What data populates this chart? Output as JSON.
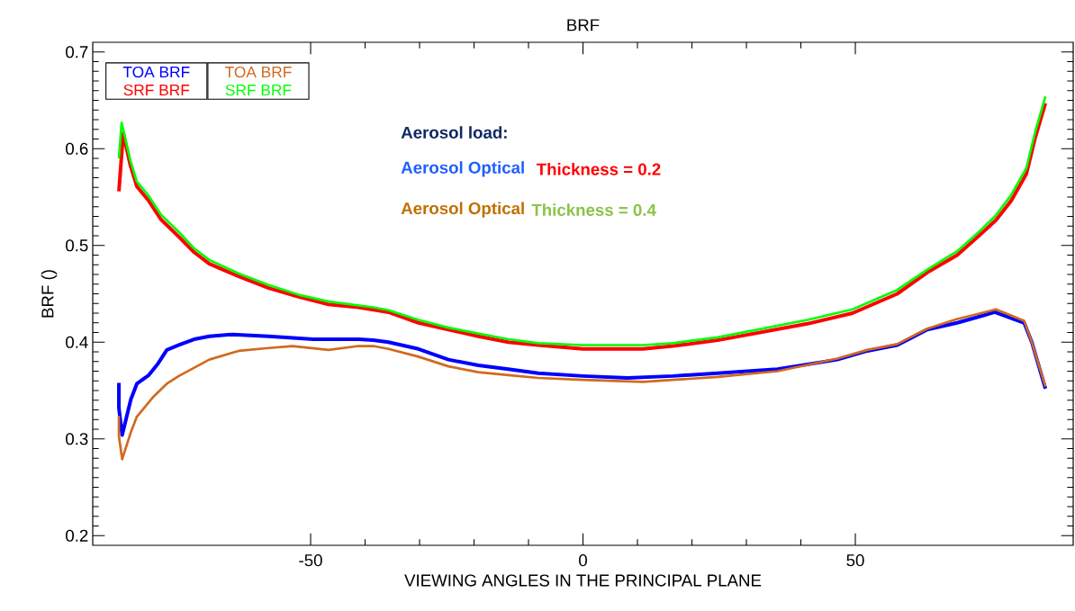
{
  "chart_data": {
    "type": "line",
    "title": "BRF",
    "xlabel": "VIEWING ANGLES IN THE PRINCIPAL PLANE",
    "ylabel": "BRF ()",
    "xlim": [
      -90,
      90
    ],
    "ylim": [
      0.19,
      0.71
    ],
    "xticks": [
      -50,
      0,
      50
    ],
    "yticks": [
      0.2,
      0.3,
      0.4,
      0.5,
      0.6,
      0.7
    ],
    "grid": false,
    "legend": "top left",
    "marker": "none",
    "line_style": "solid",
    "annotations": [
      "Aerosol load:",
      "Aerosol Optical",
      "Thickness = 0.2",
      "Aerosol Optical",
      "Thickness = 0.4"
    ],
    "series": [
      {
        "name": "TOA  BRF",
        "color": "#0000ff",
        "x": [
          -85.2,
          -85.2,
          -84.6,
          -83.0,
          -81.9,
          -79.7,
          -78.0,
          -76.4,
          -74.2,
          -71.4,
          -68.6,
          -64.3,
          -57.7,
          -49.5,
          -41.2,
          -38.5,
          -35.7,
          -30.2,
          -24.7,
          -19.2,
          -13.7,
          -8.2,
          0,
          8.2,
          16.5,
          24.7,
          35.7,
          46.7,
          52.2,
          57.7,
          63.2,
          68.7,
          73.1,
          75.6,
          81.0,
          82.4,
          84.9
        ],
        "values": [
          0.358,
          0.332,
          0.304,
          0.341,
          0.357,
          0.366,
          0.378,
          0.392,
          0.397,
          0.403,
          0.406,
          0.408,
          0.406,
          0.403,
          0.403,
          0.402,
          0.4,
          0.393,
          0.382,
          0.376,
          0.372,
          0.368,
          0.365,
          0.363,
          0.365,
          0.368,
          0.372,
          0.382,
          0.391,
          0.397,
          0.413,
          0.42,
          0.427,
          0.431,
          0.42,
          0.4,
          0.352
        ]
      },
      {
        "name": "SRF  BRF",
        "color": "#ff0000",
        "x": [
          -85.2,
          -84.4,
          -83.1,
          -81.9,
          -79.7,
          -77.5,
          -74.2,
          -71.4,
          -68.6,
          -63.2,
          -57.7,
          -52.2,
          -46.7,
          -41.2,
          -35.7,
          -30.2,
          -24.7,
          -19.2,
          -13.7,
          -8.2,
          0,
          11.0,
          16.5,
          24.7,
          41.2,
          49.5,
          57.7,
          63.2,
          68.7,
          72.5,
          75.8,
          78.6,
          81.4,
          83.0,
          84.9
        ],
        "values": [
          0.556,
          0.616,
          0.583,
          0.561,
          0.546,
          0.527,
          0.509,
          0.493,
          0.481,
          0.468,
          0.456,
          0.447,
          0.439,
          0.436,
          0.431,
          0.42,
          0.413,
          0.406,
          0.4,
          0.397,
          0.393,
          0.393,
          0.396,
          0.402,
          0.419,
          0.43,
          0.45,
          0.472,
          0.49,
          0.509,
          0.526,
          0.546,
          0.574,
          0.611,
          0.647
        ]
      },
      {
        "name": "TOA  BRF",
        "color": "#d2691e",
        "x": [
          -85.2,
          -85.2,
          -84.6,
          -83.0,
          -81.9,
          -78.8,
          -76.4,
          -74.2,
          -68.6,
          -63.2,
          -57.7,
          -53.3,
          -46.7,
          -41.2,
          -38.5,
          -35.7,
          -30.2,
          -24.7,
          -19.2,
          -13.7,
          -8.2,
          0,
          11.0,
          16.5,
          24.7,
          35.7,
          46.7,
          52.2,
          57.7,
          63.2,
          68.7,
          73.1,
          75.8,
          81.0,
          82.4,
          84.9
        ],
        "values": [
          0.324,
          0.303,
          0.279,
          0.307,
          0.323,
          0.344,
          0.357,
          0.365,
          0.382,
          0.391,
          0.394,
          0.396,
          0.392,
          0.396,
          0.396,
          0.393,
          0.385,
          0.375,
          0.369,
          0.366,
          0.363,
          0.361,
          0.359,
          0.361,
          0.364,
          0.37,
          0.383,
          0.392,
          0.398,
          0.414,
          0.424,
          0.43,
          0.434,
          0.422,
          0.4,
          0.354
        ]
      },
      {
        "name": "SRF  BRF",
        "color": "#00ff00",
        "x": [
          -85.2,
          -84.7,
          -83.1,
          -81.9,
          -79.7,
          -77.5,
          -74.2,
          -71.4,
          -68.6,
          -63.2,
          -57.7,
          -52.2,
          -46.7,
          -38.5,
          -35.7,
          -30.2,
          -24.7,
          -19.2,
          -13.7,
          -8.2,
          0,
          11.0,
          16.5,
          24.7,
          41.2,
          49.5,
          57.7,
          63.2,
          68.7,
          72.5,
          75.8,
          78.6,
          81.4,
          83.0,
          84.9
        ],
        "values": [
          0.59,
          0.627,
          0.588,
          0.566,
          0.551,
          0.532,
          0.514,
          0.497,
          0.485,
          0.471,
          0.459,
          0.449,
          0.442,
          0.436,
          0.433,
          0.423,
          0.415,
          0.409,
          0.403,
          0.399,
          0.397,
          0.397,
          0.399,
          0.405,
          0.423,
          0.434,
          0.454,
          0.475,
          0.494,
          0.513,
          0.531,
          0.552,
          0.58,
          0.617,
          0.654
        ]
      }
    ]
  }
}
